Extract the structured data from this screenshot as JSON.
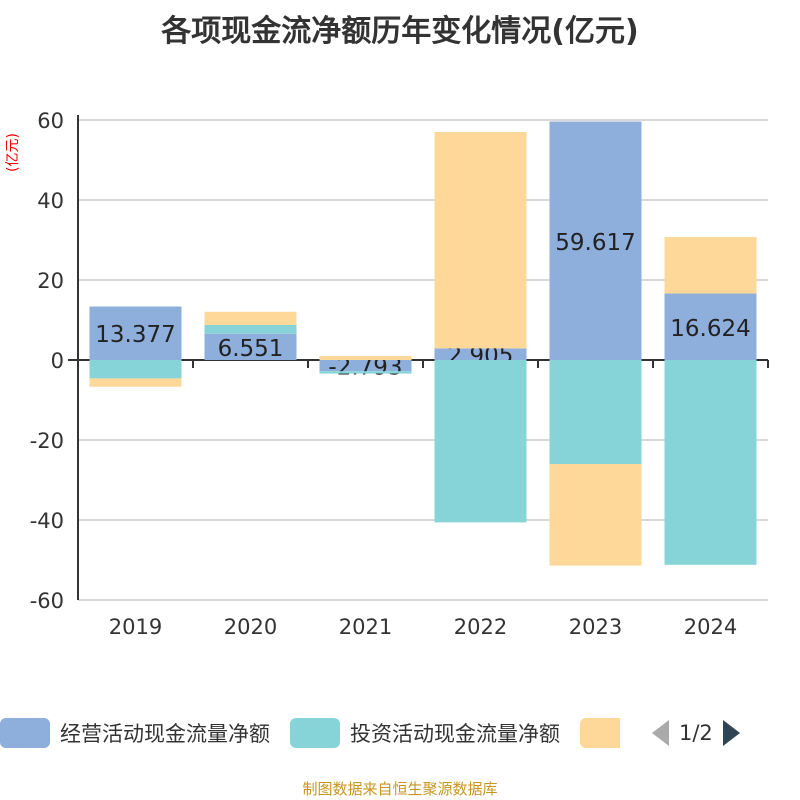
{
  "title": "各项现金流净额历年变化情况(亿元)",
  "footer": "制图数据来自恒生聚源数据库",
  "legend_page": "1/2",
  "chart_data": {
    "type": "bar",
    "stacked": true,
    "title": "各项现金流净额历年变化情况(亿元)",
    "ylabel": "(亿元)",
    "ylim": [
      -60,
      60
    ],
    "yticks": [
      -60,
      -40,
      -20,
      0,
      20,
      40,
      60
    ],
    "grid": true,
    "legend_position": "bottom",
    "categories": [
      "2019",
      "2020",
      "2021",
      "2022",
      "2023",
      "2024"
    ],
    "series": [
      {
        "name": "经营活动现金流量净额",
        "color": "#8eaedb",
        "values": [
          13.377,
          6.551,
          -2.793,
          2.905,
          59.617,
          16.624
        ],
        "labels": [
          "13.377",
          "6.551",
          "-2.793",
          "2.905",
          "59.617",
          "16.624"
        ]
      },
      {
        "name": "投资活动现金流量净额",
        "color": "#86d4d8",
        "values": [
          -4.6,
          2.2,
          -0.6,
          -40.6,
          -26.0,
          -51.2
        ]
      },
      {
        "color": "#fed899",
        "values": [
          -2.1,
          3.3,
          1.0,
          54.1,
          -25.4,
          14.1
        ]
      }
    ]
  }
}
